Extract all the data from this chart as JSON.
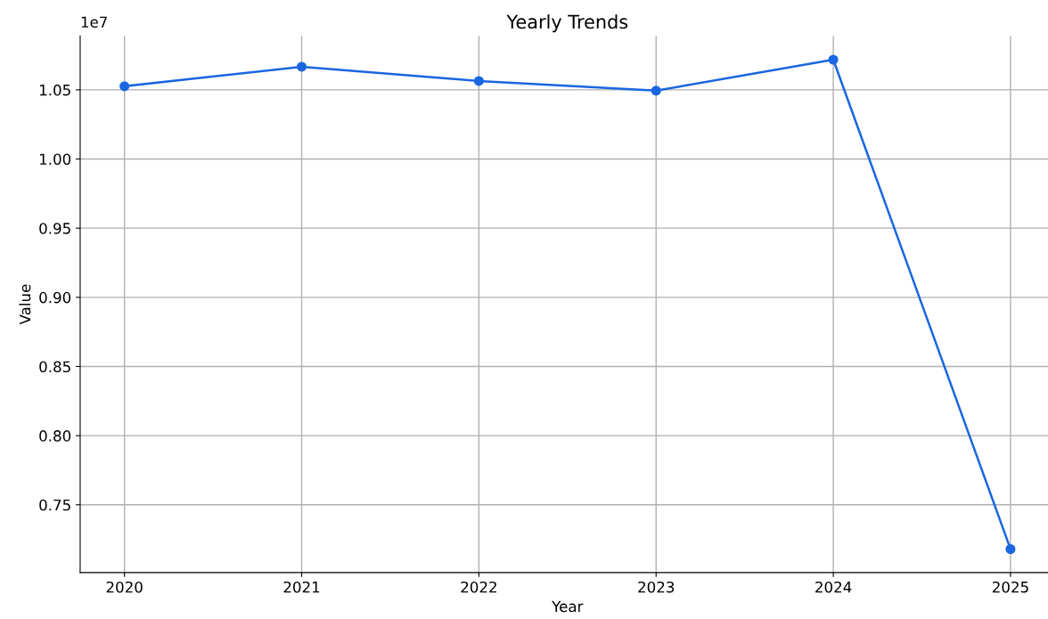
{
  "chart_data": {
    "type": "line",
    "title": "Yearly Trends",
    "xlabel": "Year",
    "ylabel": "Value",
    "categories": [
      "2020",
      "2021",
      "2022",
      "2023",
      "2024",
      "2025"
    ],
    "series": [
      {
        "color": "#1a66e0",
        "values": [
          1.0526,
          1.0667,
          1.0564,
          1.0494,
          1.0718,
          0.718
        ]
      }
    ],
    "ylim": [
      0.701,
      1.089
    ],
    "yticks": [
      {
        "value": 0.75,
        "label": "0.75"
      },
      {
        "value": 0.8,
        "label": "0.80"
      },
      {
        "value": 0.85,
        "label": "0.85"
      },
      {
        "value": 0.9,
        "label": "0.90"
      },
      {
        "value": 0.95,
        "label": "0.95"
      },
      {
        "value": 1.0,
        "label": "1.00"
      },
      {
        "value": 1.05,
        "label": "1.05"
      }
    ],
    "annotations": [
      "1e7"
    ],
    "grid": true,
    "marker": "circle",
    "line_style": "solid"
  }
}
